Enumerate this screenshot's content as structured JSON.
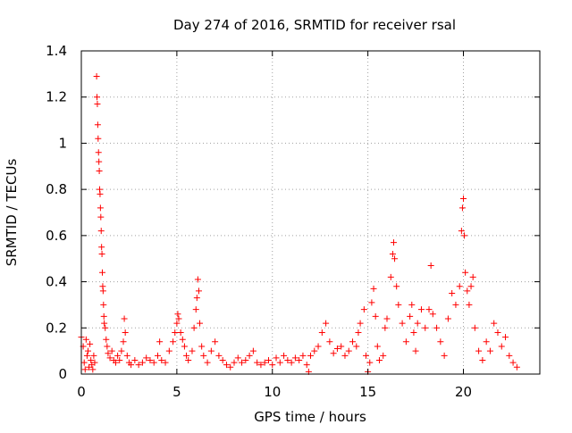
{
  "chart_data": {
    "type": "scatter",
    "title": "Day 274 of 2016, SRMTID for receiver rsal",
    "xlabel": "GPS time / hours",
    "ylabel": "SRMTID / TECUs",
    "xlim": [
      0,
      24
    ],
    "ylim": [
      0,
      1.4
    ],
    "x_ticks": [
      0,
      5,
      10,
      15,
      20
    ],
    "x_tick_labels": [
      "0",
      "5",
      "10",
      "15",
      "20"
    ],
    "y_ticks": [
      0,
      0.2,
      0.4,
      0.6,
      0.8,
      1,
      1.2,
      1.4
    ],
    "y_tick_labels": [
      "0",
      "0.2",
      "0.4",
      "0.6",
      "0.8",
      "1",
      "1.2",
      "1.4"
    ],
    "grid": true,
    "marker": "+",
    "series": [
      {
        "name": "SRMTID",
        "color": "#ff0000",
        "points": [
          [
            0.0,
            0.16
          ],
          [
            0.1,
            0.12
          ],
          [
            0.15,
            0.05
          ],
          [
            0.2,
            0.02
          ],
          [
            0.25,
            0.15
          ],
          [
            0.3,
            0.08
          ],
          [
            0.35,
            0.1
          ],
          [
            0.4,
            0.03
          ],
          [
            0.45,
            0.13
          ],
          [
            0.5,
            0.06
          ],
          [
            0.55,
            0.04
          ],
          [
            0.6,
            0.02
          ],
          [
            0.65,
            0.08
          ],
          [
            0.7,
            0.05
          ],
          [
            0.8,
            1.29
          ],
          [
            0.82,
            1.2
          ],
          [
            0.84,
            1.17
          ],
          [
            0.86,
            1.08
          ],
          [
            0.88,
            1.02
          ],
          [
            0.9,
            0.96
          ],
          [
            0.92,
            0.92
          ],
          [
            0.94,
            0.88
          ],
          [
            0.96,
            0.8
          ],
          [
            0.98,
            0.78
          ],
          [
            1.0,
            0.72
          ],
          [
            1.02,
            0.68
          ],
          [
            1.04,
            0.62
          ],
          [
            1.06,
            0.55
          ],
          [
            1.08,
            0.52
          ],
          [
            1.1,
            0.44
          ],
          [
            1.12,
            0.38
          ],
          [
            1.14,
            0.36
          ],
          [
            1.16,
            0.3
          ],
          [
            1.18,
            0.25
          ],
          [
            1.2,
            0.22
          ],
          [
            1.25,
            0.2
          ],
          [
            1.3,
            0.15
          ],
          [
            1.35,
            0.12
          ],
          [
            1.4,
            0.09
          ],
          [
            1.5,
            0.07
          ],
          [
            1.6,
            0.1
          ],
          [
            1.7,
            0.06
          ],
          [
            1.8,
            0.05
          ],
          [
            1.9,
            0.08
          ],
          [
            2.0,
            0.06
          ],
          [
            2.1,
            0.1
          ],
          [
            2.2,
            0.14
          ],
          [
            2.25,
            0.24
          ],
          [
            2.3,
            0.18
          ],
          [
            2.4,
            0.08
          ],
          [
            2.5,
            0.05
          ],
          [
            2.6,
            0.04
          ],
          [
            2.8,
            0.06
          ],
          [
            3.0,
            0.04
          ],
          [
            3.2,
            0.05
          ],
          [
            3.4,
            0.07
          ],
          [
            3.6,
            0.06
          ],
          [
            3.8,
            0.05
          ],
          [
            4.0,
            0.08
          ],
          [
            4.1,
            0.14
          ],
          [
            4.2,
            0.06
          ],
          [
            4.4,
            0.05
          ],
          [
            4.6,
            0.1
          ],
          [
            4.8,
            0.14
          ],
          [
            4.9,
            0.18
          ],
          [
            5.0,
            0.22
          ],
          [
            5.05,
            0.26
          ],
          [
            5.1,
            0.24
          ],
          [
            5.2,
            0.18
          ],
          [
            5.3,
            0.15
          ],
          [
            5.4,
            0.12
          ],
          [
            5.5,
            0.08
          ],
          [
            5.6,
            0.06
          ],
          [
            5.8,
            0.1
          ],
          [
            5.9,
            0.2
          ],
          [
            6.0,
            0.28
          ],
          [
            6.05,
            0.33
          ],
          [
            6.1,
            0.41
          ],
          [
            6.15,
            0.36
          ],
          [
            6.2,
            0.22
          ],
          [
            6.3,
            0.12
          ],
          [
            6.4,
            0.08
          ],
          [
            6.6,
            0.05
          ],
          [
            6.8,
            0.1
          ],
          [
            7.0,
            0.14
          ],
          [
            7.2,
            0.08
          ],
          [
            7.4,
            0.06
          ],
          [
            7.6,
            0.04
          ],
          [
            7.8,
            0.03
          ],
          [
            8.0,
            0.05
          ],
          [
            8.2,
            0.07
          ],
          [
            8.4,
            0.05
          ],
          [
            8.6,
            0.06
          ],
          [
            8.8,
            0.08
          ],
          [
            9.0,
            0.1
          ],
          [
            9.2,
            0.05
          ],
          [
            9.4,
            0.04
          ],
          [
            9.6,
            0.05
          ],
          [
            9.8,
            0.06
          ],
          [
            10.0,
            0.04
          ],
          [
            10.2,
            0.07
          ],
          [
            10.4,
            0.05
          ],
          [
            10.6,
            0.08
          ],
          [
            10.8,
            0.06
          ],
          [
            11.0,
            0.05
          ],
          [
            11.2,
            0.07
          ],
          [
            11.4,
            0.06
          ],
          [
            11.6,
            0.08
          ],
          [
            11.8,
            0.04
          ],
          [
            11.9,
            0.01
          ],
          [
            12.0,
            0.08
          ],
          [
            12.2,
            0.1
          ],
          [
            12.4,
            0.12
          ],
          [
            12.6,
            0.18
          ],
          [
            12.8,
            0.22
          ],
          [
            13.0,
            0.14
          ],
          [
            13.2,
            0.09
          ],
          [
            13.4,
            0.11
          ],
          [
            13.6,
            0.12
          ],
          [
            13.8,
            0.08
          ],
          [
            14.0,
            0.1
          ],
          [
            14.2,
            0.14
          ],
          [
            14.4,
            0.12
          ],
          [
            14.5,
            0.18
          ],
          [
            14.6,
            0.22
          ],
          [
            14.8,
            0.28
          ],
          [
            14.9,
            0.08
          ],
          [
            15.0,
            0.01
          ],
          [
            15.1,
            0.05
          ],
          [
            15.2,
            0.31
          ],
          [
            15.3,
            0.37
          ],
          [
            15.4,
            0.25
          ],
          [
            15.5,
            0.12
          ],
          [
            15.6,
            0.06
          ],
          [
            15.8,
            0.08
          ],
          [
            15.9,
            0.2
          ],
          [
            16.0,
            0.24
          ],
          [
            16.2,
            0.42
          ],
          [
            16.3,
            0.52
          ],
          [
            16.35,
            0.57
          ],
          [
            16.4,
            0.5
          ],
          [
            16.5,
            0.38
          ],
          [
            16.6,
            0.3
          ],
          [
            16.8,
            0.22
          ],
          [
            17.0,
            0.14
          ],
          [
            17.2,
            0.25
          ],
          [
            17.3,
            0.3
          ],
          [
            17.4,
            0.18
          ],
          [
            17.5,
            0.1
          ],
          [
            17.6,
            0.22
          ],
          [
            17.8,
            0.28
          ],
          [
            18.0,
            0.2
          ],
          [
            18.2,
            0.28
          ],
          [
            18.3,
            0.47
          ],
          [
            18.4,
            0.26
          ],
          [
            18.6,
            0.2
          ],
          [
            18.8,
            0.14
          ],
          [
            19.0,
            0.08
          ],
          [
            19.2,
            0.24
          ],
          [
            19.4,
            0.35
          ],
          [
            19.6,
            0.3
          ],
          [
            19.8,
            0.38
          ],
          [
            19.9,
            0.62
          ],
          [
            19.95,
            0.72
          ],
          [
            20.0,
            0.76
          ],
          [
            20.05,
            0.6
          ],
          [
            20.1,
            0.44
          ],
          [
            20.2,
            0.36
          ],
          [
            20.3,
            0.3
          ],
          [
            20.4,
            0.38
          ],
          [
            20.5,
            0.42
          ],
          [
            20.6,
            0.2
          ],
          [
            20.8,
            0.1
          ],
          [
            21.0,
            0.06
          ],
          [
            21.2,
            0.14
          ],
          [
            21.4,
            0.1
          ],
          [
            21.6,
            0.22
          ],
          [
            21.8,
            0.18
          ],
          [
            22.0,
            0.12
          ],
          [
            22.2,
            0.16
          ],
          [
            22.4,
            0.08
          ],
          [
            22.6,
            0.05
          ],
          [
            22.8,
            0.03
          ]
        ]
      }
    ]
  }
}
